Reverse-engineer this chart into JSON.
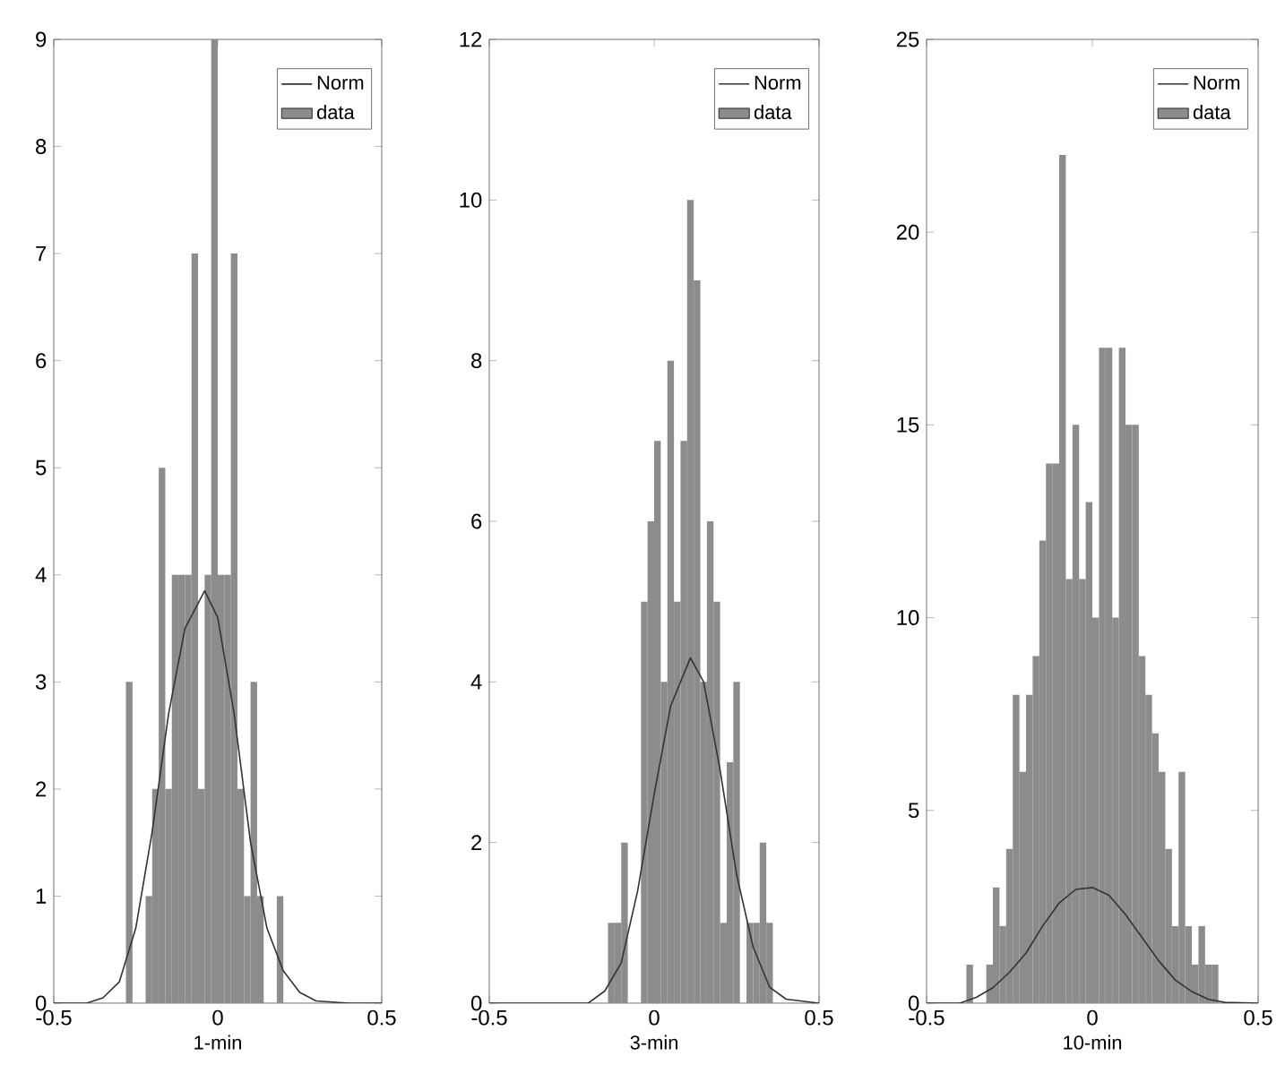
{
  "chart_data": [
    {
      "type": "histogram",
      "xlabel": "1-min",
      "xlim": [
        -0.5,
        0.5
      ],
      "xticks": [
        -0.5,
        0,
        0.5
      ],
      "ylim": [
        0,
        9
      ],
      "yticks": [
        0,
        1,
        2,
        3,
        4,
        5,
        6,
        7,
        8,
        9
      ],
      "legend": "top right",
      "series": [
        {
          "name": "Norm",
          "type": "line",
          "color": "#333333",
          "x": [
            -0.5,
            -0.4,
            -0.35,
            -0.3,
            -0.25,
            -0.2,
            -0.15,
            -0.1,
            -0.04,
            0,
            0.05,
            0.1,
            0.15,
            0.2,
            0.25,
            0.3,
            0.4,
            0.5
          ],
          "values": [
            0,
            0,
            0.05,
            0.2,
            0.7,
            1.6,
            2.7,
            3.5,
            3.85,
            3.6,
            2.7,
            1.5,
            0.7,
            0.3,
            0.1,
            0.02,
            0,
            0
          ]
        },
        {
          "name": "data",
          "color": "#8c8c8c",
          "bins": [
            -0.28,
            -0.26,
            -0.24,
            -0.22,
            -0.2,
            -0.18,
            -0.16,
            -0.14,
            -0.12,
            -0.1,
            -0.08,
            -0.06,
            -0.04,
            -0.02,
            0,
            0.02,
            0.04,
            0.06,
            0.08,
            0.1,
            0.12,
            0.14,
            0.16,
            0.18,
            0.2
          ],
          "values": [
            3,
            0,
            0,
            1,
            2,
            5,
            2,
            4,
            4,
            4,
            7,
            2,
            4,
            9,
            4,
            4,
            7,
            2,
            1,
            3,
            1,
            0,
            0,
            1
          ]
        }
      ]
    },
    {
      "type": "histogram",
      "xlabel": "3-min",
      "xlim": [
        -0.5,
        0.5
      ],
      "xticks": [
        -0.5,
        0,
        0.5
      ],
      "ylim": [
        0,
        12
      ],
      "yticks": [
        0,
        2,
        4,
        6,
        8,
        10,
        12
      ],
      "legend": "top right",
      "series": [
        {
          "name": "Norm",
          "type": "line",
          "color": "#333333",
          "x": [
            -0.5,
            -0.2,
            -0.15,
            -0.1,
            -0.05,
            0,
            0.05,
            0.11,
            0.15,
            0.2,
            0.25,
            0.3,
            0.35,
            0.4,
            0.5
          ],
          "values": [
            0,
            0,
            0.15,
            0.5,
            1.4,
            2.6,
            3.7,
            4.3,
            4.0,
            2.9,
            1.6,
            0.7,
            0.2,
            0.05,
            0
          ]
        },
        {
          "name": "data",
          "color": "#8c8c8c",
          "bins": [
            -0.14,
            -0.12,
            -0.1,
            -0.08,
            -0.06,
            -0.04,
            -0.02,
            0,
            0.02,
            0.04,
            0.06,
            0.08,
            0.1,
            0.12,
            0.14,
            0.16,
            0.18,
            0.2,
            0.22,
            0.24,
            0.26,
            0.28,
            0.3,
            0.32,
            0.34,
            0.36
          ],
          "values": [
            1,
            1,
            2,
            0,
            0,
            5,
            6,
            7,
            4,
            8,
            5,
            7,
            10,
            9,
            4,
            6,
            5,
            1,
            3,
            4,
            0,
            1,
            1,
            2,
            1
          ]
        }
      ]
    },
    {
      "type": "histogram",
      "xlabel": "10-min",
      "xlim": [
        -0.5,
        0.5
      ],
      "xticks": [
        -0.5,
        0,
        0.5
      ],
      "ylim": [
        0,
        25
      ],
      "yticks": [
        0,
        5,
        10,
        15,
        20,
        25
      ],
      "legend": "top right",
      "series": [
        {
          "name": "Norm",
          "type": "line",
          "color": "#333333",
          "x": [
            -0.5,
            -0.4,
            -0.35,
            -0.3,
            -0.25,
            -0.2,
            -0.15,
            -0.1,
            -0.05,
            0,
            0.05,
            0.1,
            0.15,
            0.2,
            0.25,
            0.3,
            0.35,
            0.4,
            0.5
          ],
          "values": [
            0,
            0,
            0.15,
            0.4,
            0.8,
            1.3,
            2.0,
            2.6,
            2.95,
            3.0,
            2.8,
            2.3,
            1.7,
            1.1,
            0.6,
            0.3,
            0.1,
            0.02,
            0
          ]
        },
        {
          "name": "data",
          "color": "#8c8c8c",
          "bins": [
            -0.38,
            -0.36,
            -0.34,
            -0.32,
            -0.3,
            -0.28,
            -0.26,
            -0.24,
            -0.22,
            -0.2,
            -0.18,
            -0.16,
            -0.14,
            -0.12,
            -0.1,
            -0.08,
            -0.06,
            -0.04,
            -0.02,
            0,
            0.02,
            0.04,
            0.06,
            0.08,
            0.1,
            0.12,
            0.14,
            0.16,
            0.18,
            0.2,
            0.22,
            0.24,
            0.26,
            0.28,
            0.3,
            0.32,
            0.34,
            0.36,
            0.38
          ],
          "values": [
            1,
            0,
            0,
            1,
            3,
            2,
            4,
            8,
            6,
            8,
            9,
            12,
            14,
            14,
            22,
            11,
            15,
            11,
            13,
            10,
            17,
            17,
            10,
            17,
            15,
            15,
            9,
            8,
            7,
            6,
            4,
            2,
            6,
            2,
            1,
            2,
            1,
            1
          ]
        }
      ]
    }
  ]
}
